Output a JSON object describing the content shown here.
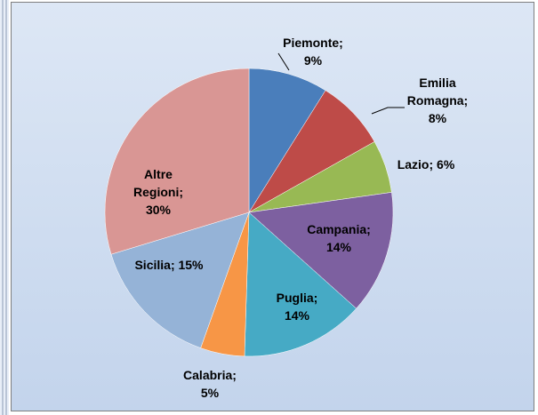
{
  "chart_data": {
    "type": "pie",
    "values": [
      9,
      8,
      6,
      14,
      14,
      5,
      15,
      30
    ],
    "value_labels": [
      "Piemonte; 9%",
      "Emilia Romagna; 8%",
      "Lazio; 6%",
      "Campania; 14%",
      "Puglia; 14%",
      "Calabria; 5%",
      "Sicilia; 15%",
      "Altre Regioni; 30%"
    ],
    "colors": [
      "#4a7ebb",
      "#be4b48",
      "#98b954",
      "#7d60a0",
      "#46aac5",
      "#f79646",
      "#95b3d7",
      "#d99694"
    ]
  }
}
